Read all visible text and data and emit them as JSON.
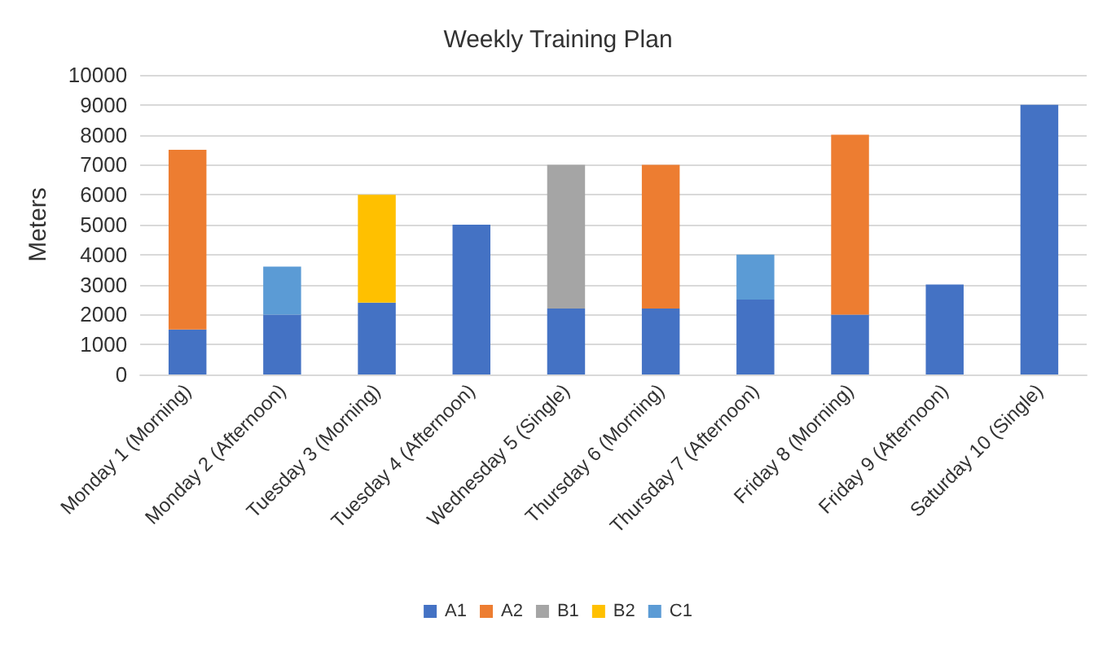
{
  "chart_data": {
    "type": "bar",
    "title": "Weekly Training Plan",
    "ylabel": "Meters",
    "stacked": true,
    "categories": [
      "Monday 1 (Morning)",
      "Monday 2 (Afternoon)",
      "Tuesday 3 (Morning)",
      "Tuesday 4 (Afternoon)",
      "Wednesday 5 (Single)",
      "Thursday 6 (Morning)",
      "Thursday 7 (Afternoon)",
      "Friday 8 (Morning)",
      "Friday 9 (Afternoon)",
      "Saturday 10 (Single)"
    ],
    "series": [
      {
        "name": "A1",
        "color": "#4472c4",
        "values": [
          1500,
          2000,
          2400,
          5000,
          2200,
          2200,
          2500,
          2000,
          3000,
          9000
        ]
      },
      {
        "name": "A2",
        "color": "#ed7d31",
        "values": [
          6000,
          null,
          null,
          null,
          null,
          4800,
          null,
          6000,
          null,
          null
        ]
      },
      {
        "name": "B1",
        "color": "#a5a5a5",
        "values": [
          null,
          null,
          null,
          null,
          4800,
          null,
          null,
          null,
          null,
          null
        ]
      },
      {
        "name": "B2",
        "color": "#ffc000",
        "values": [
          null,
          null,
          3600,
          null,
          null,
          null,
          null,
          null,
          null,
          null
        ]
      },
      {
        "name": "C1",
        "color": "#5b9bd5",
        "values": [
          null,
          1600,
          null,
          null,
          null,
          null,
          1500,
          null,
          null,
          null
        ]
      }
    ],
    "ylim": [
      0,
      10000
    ],
    "yticks": [
      0,
      1000,
      2000,
      3000,
      4000,
      5000,
      6000,
      7000,
      8000,
      9000,
      10000
    ],
    "grid": "y",
    "legend": "bottom"
  }
}
